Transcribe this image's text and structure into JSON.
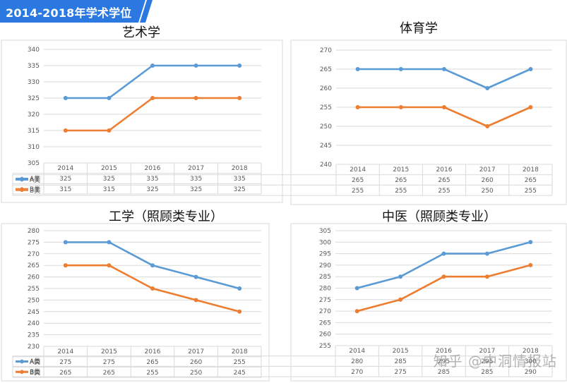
{
  "banner": {
    "title": "2014-2018年学术学位",
    "color": "#2a78e0"
  },
  "watermark": "知乎 @中洞情报站",
  "colors": {
    "A": "#5b9bd5",
    "B": "#ed7d31"
  },
  "chart_data": [
    {
      "type": "line",
      "title": "艺术学",
      "categories": [
        "2014",
        "2015",
        "2016",
        "2017",
        "2018"
      ],
      "series": [
        {
          "name": "A类",
          "values": [
            325,
            325,
            335,
            335,
            335
          ]
        },
        {
          "name": "B类",
          "values": [
            315,
            315,
            325,
            325,
            325
          ]
        }
      ],
      "ylim": [
        305,
        340
      ],
      "ystep": 5,
      "yticks": [
        "305",
        "310",
        "315",
        "320",
        "325",
        "330",
        "335",
        "340"
      ],
      "grid": true,
      "legend": "data-table"
    },
    {
      "type": "line",
      "title": "体育学",
      "categories": [
        "2014",
        "2015",
        "2016",
        "2017",
        "2018"
      ],
      "series": [
        {
          "name": "A类",
          "values": [
            265,
            265,
            265,
            260,
            265
          ]
        },
        {
          "name": "B类",
          "values": [
            255,
            255,
            255,
            250,
            255
          ]
        }
      ],
      "ylim": [
        240,
        270
      ],
      "ystep": 5,
      "yticks": [
        "240",
        "245",
        "250",
        "255",
        "260",
        "265",
        "270"
      ],
      "grid": true,
      "legend": "data-table"
    },
    {
      "type": "line",
      "title": "工学（照顾类专业）",
      "categories": [
        "2014",
        "2015",
        "2016",
        "2017",
        "2018"
      ],
      "series": [
        {
          "name": "A类",
          "values": [
            275,
            275,
            265,
            260,
            255
          ]
        },
        {
          "name": "B类",
          "values": [
            265,
            265,
            255,
            250,
            245
          ]
        }
      ],
      "ylim": [
        230,
        280
      ],
      "ystep": 5,
      "yticks": [
        "230",
        "235",
        "240",
        "245",
        "250",
        "255",
        "260",
        "265",
        "270",
        "275",
        "280"
      ],
      "grid": true,
      "legend": "data-table"
    },
    {
      "type": "line",
      "title": "中医（照顾类专业）",
      "categories": [
        "2014",
        "2015",
        "2016",
        "2017",
        "2018"
      ],
      "series": [
        {
          "name": "A类",
          "values": [
            280,
            285,
            295,
            295,
            300
          ]
        },
        {
          "name": "B类",
          "values": [
            270,
            275,
            285,
            285,
            290
          ]
        }
      ],
      "ylim": [
        255,
        305
      ],
      "ystep": 5,
      "yticks": [
        "255",
        "260",
        "265",
        "270",
        "275",
        "280",
        "285",
        "290",
        "295",
        "300",
        "305"
      ],
      "grid": true,
      "legend": "data-table"
    }
  ]
}
